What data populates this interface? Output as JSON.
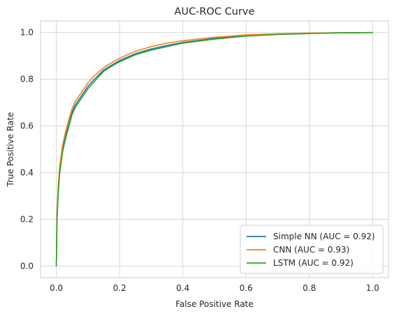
{
  "chart_data": {
    "type": "line",
    "title": "AUC-ROC Curve",
    "xlabel": "False Positive Rate",
    "ylabel": "True Positive Rate",
    "xlim": [
      -0.05,
      1.05
    ],
    "ylim": [
      -0.05,
      1.05
    ],
    "xticks": [
      0.0,
      0.2,
      0.4,
      0.6,
      0.8,
      1.0
    ],
    "yticks": [
      0.0,
      0.2,
      0.4,
      0.6,
      0.8,
      1.0
    ],
    "xtick_labels": [
      "0.0",
      "0.2",
      "0.4",
      "0.6",
      "0.8",
      "1.0"
    ],
    "ytick_labels": [
      "0.0",
      "0.2",
      "0.4",
      "0.6",
      "0.8",
      "1.0"
    ],
    "grid": true,
    "legend_position": "lower-right",
    "series": [
      {
        "name": "Simple NN (AUC = 0.92)",
        "color": "#1f77b4",
        "x": [
          0,
          0.002,
          0.005,
          0.01,
          0.02,
          0.03,
          0.04,
          0.05,
          0.06,
          0.08,
          0.1,
          0.12,
          0.15,
          0.18,
          0.2,
          0.25,
          0.3,
          0.35,
          0.4,
          0.5,
          0.6,
          0.7,
          0.8,
          0.9,
          1.0
        ],
        "y": [
          0,
          0.2,
          0.3,
          0.4,
          0.5,
          0.56,
          0.61,
          0.66,
          0.69,
          0.73,
          0.77,
          0.8,
          0.84,
          0.865,
          0.88,
          0.91,
          0.93,
          0.945,
          0.958,
          0.975,
          0.987,
          0.993,
          0.997,
          0.999,
          1.0
        ]
      },
      {
        "name": "CNN (AUC = 0.93)",
        "color": "#ff7f0e",
        "x": [
          0,
          0.002,
          0.005,
          0.01,
          0.02,
          0.03,
          0.04,
          0.05,
          0.06,
          0.08,
          0.1,
          0.12,
          0.15,
          0.18,
          0.2,
          0.25,
          0.3,
          0.35,
          0.4,
          0.5,
          0.6,
          0.7,
          0.8,
          0.9,
          1.0
        ],
        "y": [
          0,
          0.22,
          0.32,
          0.42,
          0.52,
          0.58,
          0.63,
          0.675,
          0.705,
          0.745,
          0.785,
          0.815,
          0.85,
          0.875,
          0.89,
          0.92,
          0.94,
          0.955,
          0.965,
          0.98,
          0.99,
          0.995,
          0.998,
          0.999,
          1.0
        ]
      },
      {
        "name": "LSTM (AUC = 0.92)",
        "color": "#2ca02c",
        "x": [
          0,
          0.002,
          0.005,
          0.01,
          0.02,
          0.03,
          0.04,
          0.05,
          0.06,
          0.08,
          0.1,
          0.12,
          0.15,
          0.18,
          0.2,
          0.25,
          0.3,
          0.35,
          0.4,
          0.5,
          0.6,
          0.7,
          0.8,
          0.9,
          1.0
        ],
        "y": [
          0,
          0.19,
          0.29,
          0.39,
          0.49,
          0.55,
          0.6,
          0.65,
          0.68,
          0.72,
          0.76,
          0.79,
          0.835,
          0.86,
          0.875,
          0.905,
          0.925,
          0.94,
          0.955,
          0.972,
          0.985,
          0.992,
          0.996,
          0.999,
          1.0
        ]
      }
    ]
  }
}
